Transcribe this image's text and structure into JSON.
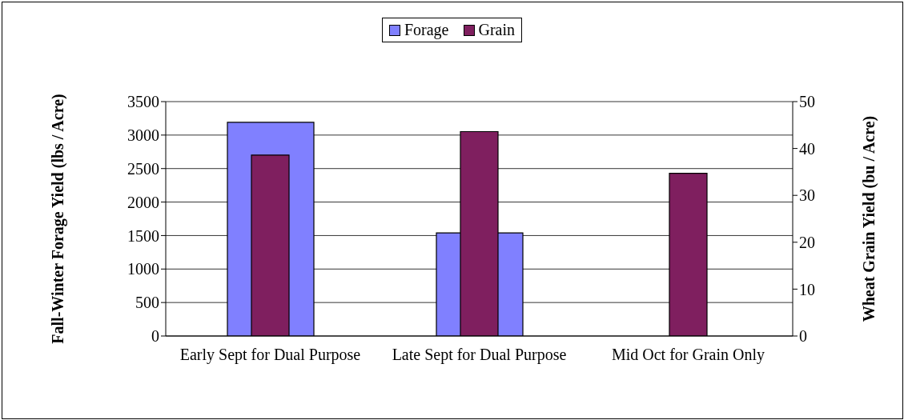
{
  "chart_data": {
    "type": "bar",
    "categories": [
      "Early Sept for Dual Purpose",
      "Late Sept for Dual Purpose",
      "Mid Oct for Grain Only"
    ],
    "series": [
      {
        "name": "Forage",
        "color": "#8080ff",
        "values": [
          3190,
          1540,
          null
        ]
      },
      {
        "name": "Grain",
        "color": "#7f1f5f",
        "values": [
          38.6,
          43.6,
          34.7
        ],
        "axis": "y2"
      }
    ],
    "ylabel": "Fall-Winter Forage Yield (lbs / Acre)",
    "y2label": "Wheat Grain Yield (bu / Acre)",
    "ylim": [
      0,
      3500
    ],
    "yticks": [
      0,
      500,
      1000,
      1500,
      2000,
      2500,
      3000,
      3500
    ],
    "y2lim": [
      0,
      50
    ],
    "y2ticks": [
      0,
      10,
      20,
      30,
      40,
      50
    ],
    "grid": "y",
    "legend": "top"
  }
}
